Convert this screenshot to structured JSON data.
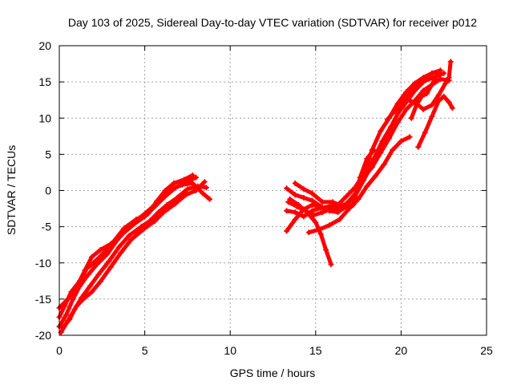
{
  "chart_data": {
    "type": "scatter",
    "title": "Day 103 of 2025, Sidereal Day-to-day VTEC variation (SDTVAR) for receiver p012",
    "xlabel": "GPS time / hours",
    "ylabel": "SDTVAR / TECUs",
    "xlim": [
      0,
      25
    ],
    "ylim": [
      -20,
      20
    ],
    "xticks": [
      0,
      5,
      10,
      15,
      20,
      25
    ],
    "yticks": [
      -20,
      -15,
      -10,
      -5,
      0,
      5,
      10,
      15,
      20
    ],
    "grid": true,
    "marker": "+",
    "color": "#ff0000",
    "traces": [
      [
        [
          0.0,
          -17.5
        ],
        [
          0.3,
          -16.0
        ],
        [
          0.7,
          -14.0
        ],
        [
          1.2,
          -12.5
        ],
        [
          1.6,
          -10.8
        ],
        [
          2.0,
          -10.0
        ],
        [
          2.6,
          -8.6
        ],
        [
          3.2,
          -7.0
        ],
        [
          3.8,
          -5.2
        ],
        [
          4.5,
          -4.0
        ],
        [
          5.2,
          -3.2
        ],
        [
          5.7,
          -1.5
        ],
        [
          6.2,
          0.0
        ],
        [
          6.7,
          1.0
        ],
        [
          7.3,
          1.5
        ],
        [
          7.8,
          2.1
        ]
      ],
      [
        [
          0.1,
          -19.6
        ],
        [
          0.5,
          -18.0
        ],
        [
          0.9,
          -16.4
        ],
        [
          1.3,
          -14.8
        ],
        [
          1.8,
          -13.2
        ],
        [
          2.3,
          -11.6
        ],
        [
          2.9,
          -9.8
        ],
        [
          3.5,
          -7.8
        ],
        [
          4.1,
          -6.2
        ],
        [
          4.8,
          -5.0
        ],
        [
          5.3,
          -4.2
        ],
        [
          5.8,
          -3.0
        ],
        [
          6.3,
          -2.0
        ],
        [
          6.9,
          -1.0
        ],
        [
          7.5,
          0.2
        ],
        [
          8.1,
          0.6
        ],
        [
          8.6,
          0.4
        ]
      ],
      [
        [
          0.0,
          -18.8
        ],
        [
          0.4,
          -17.2
        ],
        [
          0.8,
          -15.0
        ],
        [
          1.2,
          -13.2
        ],
        [
          1.7,
          -11.6
        ],
        [
          2.2,
          -10.2
        ],
        [
          2.8,
          -8.8
        ],
        [
          3.4,
          -6.8
        ],
        [
          4.0,
          -5.2
        ],
        [
          4.7,
          -3.8
        ],
        [
          5.4,
          -2.4
        ],
        [
          6.0,
          -1.0
        ],
        [
          6.6,
          0.2
        ],
        [
          7.2,
          0.8
        ],
        [
          7.8,
          1.0
        ],
        [
          8.4,
          -0.4
        ],
        [
          8.8,
          -1.2
        ]
      ],
      [
        [
          0.2,
          -19.0
        ],
        [
          0.6,
          -17.8
        ],
        [
          1.0,
          -16.0
        ],
        [
          1.4,
          -15.0
        ],
        [
          1.9,
          -14.0
        ],
        [
          2.4,
          -12.6
        ],
        [
          3.0,
          -10.6
        ],
        [
          3.6,
          -8.6
        ],
        [
          4.2,
          -6.8
        ],
        [
          4.9,
          -5.4
        ],
        [
          5.6,
          -4.2
        ],
        [
          6.1,
          -3.0
        ],
        [
          6.8,
          -1.8
        ],
        [
          7.4,
          -0.6
        ],
        [
          8.0,
          0.0
        ],
        [
          8.5,
          1.2
        ]
      ],
      [
        [
          0.0,
          -16.2
        ],
        [
          0.5,
          -15.0
        ],
        [
          1.0,
          -13.4
        ],
        [
          1.5,
          -11.0
        ],
        [
          1.9,
          -9.2
        ],
        [
          2.4,
          -8.2
        ],
        [
          3.0,
          -7.4
        ],
        [
          3.7,
          -6.0
        ],
        [
          4.4,
          -4.6
        ],
        [
          5.0,
          -3.6
        ],
        [
          5.6,
          -2.2
        ],
        [
          6.2,
          -0.8
        ],
        [
          6.8,
          0.4
        ],
        [
          7.4,
          1.2
        ],
        [
          8.0,
          1.8
        ]
      ],
      [
        [
          13.3,
          0.3
        ],
        [
          13.8,
          -0.6
        ],
        [
          14.3,
          -1.0
        ],
        [
          14.8,
          -1.4
        ],
        [
          15.3,
          -2.2
        ],
        [
          15.8,
          -2.8
        ],
        [
          16.3,
          -2.4
        ],
        [
          16.8,
          -1.8
        ],
        [
          17.3,
          -0.8
        ],
        [
          17.8,
          1.4
        ],
        [
          18.3,
          3.6
        ],
        [
          18.8,
          6.0
        ],
        [
          19.3,
          8.2
        ],
        [
          19.8,
          10.6
        ],
        [
          20.3,
          12.2
        ],
        [
          20.8,
          13.8
        ],
        [
          21.3,
          15.0
        ],
        [
          21.8,
          15.6
        ],
        [
          22.3,
          16.0
        ]
      ],
      [
        [
          13.4,
          -1.6
        ],
        [
          13.9,
          -2.2
        ],
        [
          14.4,
          -2.8
        ],
        [
          14.9,
          -3.4
        ],
        [
          15.4,
          -3.0
        ],
        [
          15.9,
          -2.6
        ],
        [
          16.4,
          -2.8
        ],
        [
          16.9,
          -1.6
        ],
        [
          17.4,
          -0.2
        ],
        [
          17.9,
          2.0
        ],
        [
          18.4,
          4.4
        ],
        [
          18.9,
          6.8
        ],
        [
          19.4,
          8.8
        ],
        [
          19.9,
          11.0
        ],
        [
          20.4,
          13.0
        ],
        [
          20.9,
          14.6
        ],
        [
          21.4,
          15.2
        ],
        [
          21.9,
          15.6
        ],
        [
          22.5,
          16.2
        ]
      ],
      [
        [
          13.3,
          -2.8
        ],
        [
          13.8,
          -3.0
        ],
        [
          14.3,
          -3.6
        ],
        [
          14.8,
          -2.8
        ],
        [
          15.3,
          -2.4
        ],
        [
          15.8,
          -2.2
        ],
        [
          16.3,
          -2.0
        ],
        [
          16.8,
          -0.8
        ],
        [
          17.3,
          0.4
        ],
        [
          17.8,
          2.2
        ],
        [
          18.3,
          5.6
        ],
        [
          18.8,
          8.2
        ],
        [
          19.3,
          10.0
        ],
        [
          19.8,
          12.0
        ],
        [
          20.3,
          13.6
        ],
        [
          20.8,
          14.8
        ],
        [
          21.3,
          15.6
        ],
        [
          21.8,
          16.2
        ],
        [
          22.3,
          16.6
        ]
      ],
      [
        [
          13.3,
          -5.6
        ],
        [
          13.8,
          -4.0
        ],
        [
          14.3,
          -2.6
        ],
        [
          14.8,
          -2.0
        ],
        [
          15.3,
          -2.2
        ],
        [
          15.8,
          -2.8
        ],
        [
          16.3,
          -3.0
        ],
        [
          16.8,
          -2.2
        ],
        [
          17.3,
          -0.6
        ],
        [
          17.8,
          1.8
        ],
        [
          18.3,
          3.2
        ],
        [
          18.8,
          5.2
        ],
        [
          19.3,
          7.2
        ],
        [
          19.8,
          9.4
        ],
        [
          20.3,
          11.2
        ],
        [
          20.8,
          12.4
        ],
        [
          21.3,
          13.8
        ],
        [
          21.8,
          14.6
        ],
        [
          22.3,
          15.4
        ],
        [
          22.8,
          15.2
        ]
      ],
      [
        [
          13.5,
          -1.2
        ],
        [
          14.0,
          -2.0
        ],
        [
          14.5,
          -3.0
        ],
        [
          15.0,
          -4.4
        ],
        [
          15.3,
          -6.0
        ],
        [
          15.6,
          -8.2
        ],
        [
          15.9,
          -10.2
        ]
      ],
      [
        [
          14.6,
          -5.8
        ],
        [
          15.2,
          -5.4
        ],
        [
          15.8,
          -4.8
        ],
        [
          16.4,
          -4.0
        ],
        [
          17.0,
          -2.4
        ],
        [
          17.5,
          -1.2
        ],
        [
          18.0,
          0.6
        ],
        [
          18.5,
          2.0
        ],
        [
          19.0,
          3.6
        ],
        [
          19.5,
          5.6
        ],
        [
          20.0,
          6.8
        ],
        [
          20.5,
          7.4
        ]
      ],
      [
        [
          13.8,
          1.0
        ],
        [
          14.3,
          0.2
        ],
        [
          14.8,
          -0.4
        ],
        [
          15.4,
          -1.6
        ],
        [
          16.0,
          -1.6
        ],
        [
          16.6,
          -2.2
        ],
        [
          17.2,
          -2.0
        ],
        [
          17.6,
          1.8
        ],
        [
          18.0,
          4.4
        ],
        [
          18.4,
          5.6
        ]
      ],
      [
        [
          19.2,
          9.8
        ],
        [
          19.7,
          11.2
        ],
        [
          20.2,
          12.6
        ],
        [
          20.8,
          12.2
        ],
        [
          21.3,
          11.2
        ],
        [
          21.8,
          11.8
        ],
        [
          22.2,
          13.2
        ],
        [
          22.6,
          14.8
        ],
        [
          22.8,
          15.6
        ],
        [
          22.9,
          17.8
        ]
      ],
      [
        [
          21.0,
          6.0
        ],
        [
          21.4,
          8.0
        ],
        [
          21.8,
          10.2
        ],
        [
          22.2,
          12.4
        ],
        [
          22.5,
          13.0
        ],
        [
          22.8,
          12.2
        ],
        [
          23.0,
          11.4
        ]
      ],
      [
        [
          20.6,
          10.0
        ],
        [
          20.9,
          11.8
        ],
        [
          21.2,
          13.0
        ],
        [
          21.5,
          13.4
        ],
        [
          21.9,
          15.0
        ],
        [
          22.2,
          16.4
        ]
      ]
    ]
  }
}
